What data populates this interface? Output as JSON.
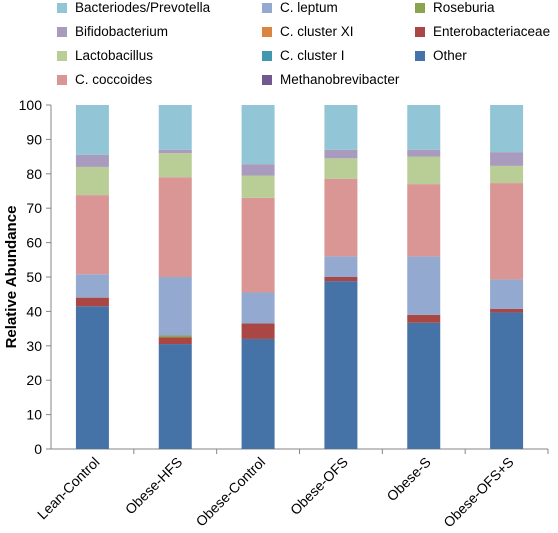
{
  "chart_data": {
    "type": "bar",
    "stacked": true,
    "title": "",
    "xlabel": "",
    "ylabel": "Relative Abundance",
    "ylim": [
      0,
      100
    ],
    "yticks": [
      0,
      10,
      20,
      30,
      40,
      50,
      60,
      70,
      80,
      90,
      100
    ],
    "grid": false,
    "legend_position": "top",
    "categories": [
      "Lean-Control",
      "Obese-HFS",
      "Obese-Control",
      "Obese-OFS",
      "Obese-S",
      "Obese-OFS+S"
    ],
    "series": [
      {
        "name": "Other",
        "color": "#4572A7",
        "values": [
          41.5,
          30.5,
          32.0,
          48.8,
          36.7,
          39.7
        ]
      },
      {
        "name": "Methanobrevibacter",
        "color": "#71588F",
        "values": [
          0,
          0,
          0,
          0,
          0,
          0
        ]
      },
      {
        "name": "Enterobacteriaceae",
        "color": "#AA4643",
        "values": [
          2.5,
          2.0,
          4.5,
          1.2,
          2.3,
          1.0
        ]
      },
      {
        "name": "C. cluster I",
        "color": "#4198AF",
        "values": [
          0,
          0,
          0,
          0,
          0,
          0
        ]
      },
      {
        "name": "C. cluster XI",
        "color": "#DB843D",
        "values": [
          0,
          0,
          0,
          0,
          0,
          0
        ]
      },
      {
        "name": "Roseburia",
        "color": "#89A54E",
        "values": [
          0,
          0.5,
          0,
          0,
          0,
          0
        ]
      },
      {
        "name": "C. leptum",
        "color": "#93A9CF",
        "values": [
          6.8,
          17.0,
          9.0,
          6.0,
          17.0,
          8.6
        ]
      },
      {
        "name": "C. coccoides",
        "color": "#D99694",
        "values": [
          23.0,
          29.0,
          27.5,
          22.5,
          21.0,
          28.0
        ]
      },
      {
        "name": "Lactobacillus",
        "color": "#B9CD96",
        "values": [
          8.2,
          7.0,
          6.5,
          6.0,
          8.0,
          5.0
        ]
      },
      {
        "name": "Bifidobacterium",
        "color": "#A99BBD",
        "values": [
          3.5,
          1.0,
          3.3,
          2.5,
          2.0,
          4.0
        ]
      },
      {
        "name": "Bacteriodes/Prevotella",
        "color": "#92C5D6",
        "values": [
          14.5,
          13.0,
          17.2,
          13.0,
          13.0,
          13.7
        ]
      }
    ]
  },
  "legend": {
    "items": [
      {
        "label": "Bacteriodes/Prevotella",
        "color": "#92C5D6"
      },
      {
        "label": "C. leptum",
        "color": "#93A9CF"
      },
      {
        "label": "Roseburia",
        "color": "#89A54E"
      },
      {
        "label": "Bifidobacterium",
        "color": "#A99BBD"
      },
      {
        "label": "C. cluster XI",
        "color": "#DB843D"
      },
      {
        "label": "Enterobacteriaceae",
        "color": "#AA4643"
      },
      {
        "label": "Lactobacillus",
        "color": "#B9CD96"
      },
      {
        "label": "C. cluster I",
        "color": "#4198AF"
      },
      {
        "label": "Other",
        "color": "#4572A7"
      },
      {
        "label": "C. coccoides",
        "color": "#D99694"
      },
      {
        "label": "Methanobrevibacter",
        "color": "#71588F"
      }
    ]
  }
}
